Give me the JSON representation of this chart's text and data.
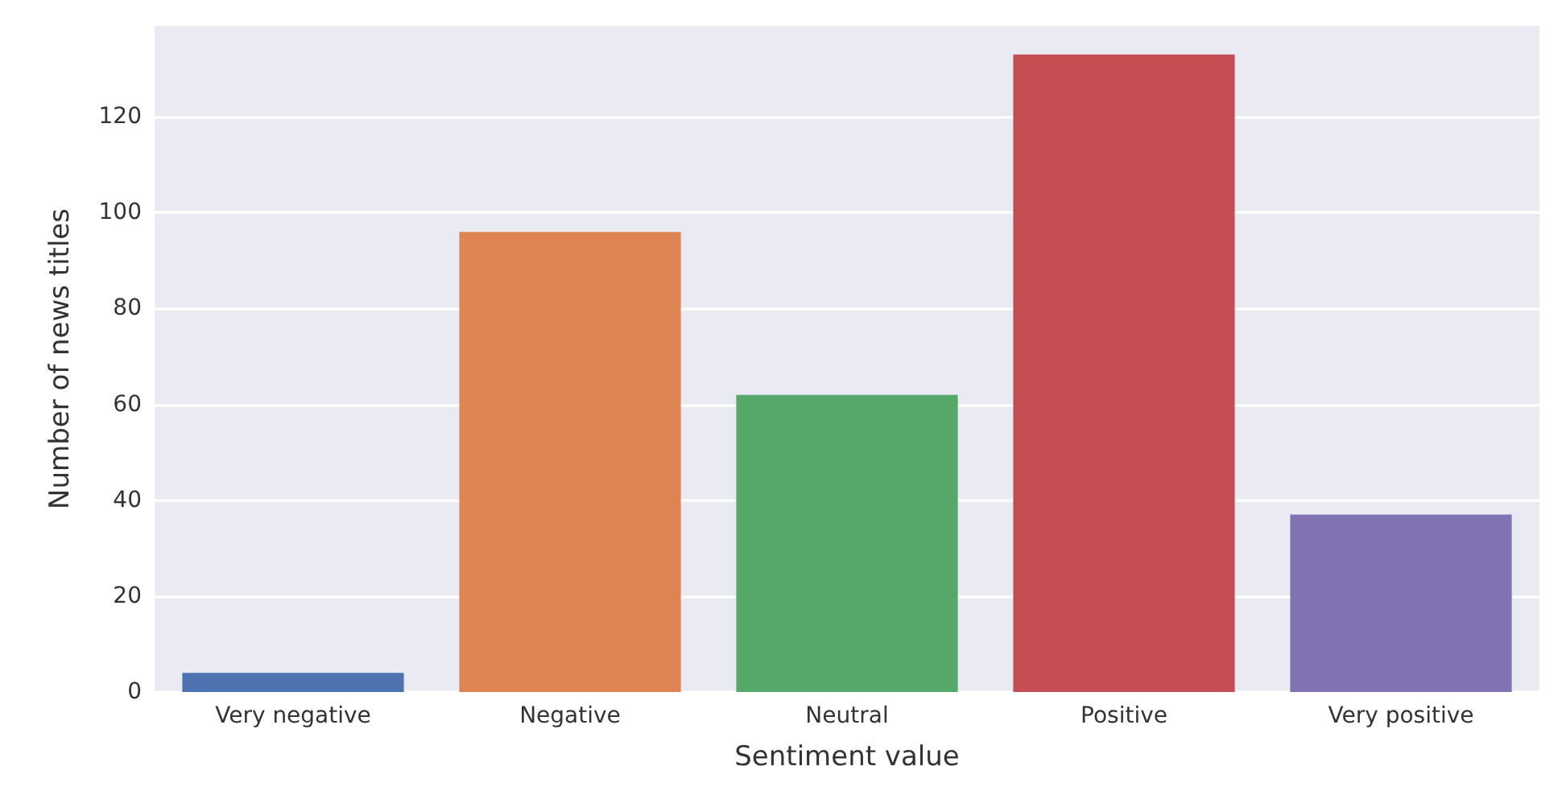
{
  "chart_data": {
    "type": "bar",
    "xlabel": "Sentiment value",
    "ylabel": "Number of news titles",
    "categories": [
      "Very negative",
      "Negative",
      "Neutral",
      "Positive",
      "Very positive"
    ],
    "values": [
      4,
      96,
      62,
      133,
      37
    ],
    "colors": [
      "#4c72b0",
      "#dd8452",
      "#55a868",
      "#c44e52",
      "#8172b3"
    ],
    "ylim": [
      0,
      139
    ],
    "yticks": [
      0,
      20,
      40,
      60,
      80,
      100,
      120
    ],
    "grid": "y"
  }
}
